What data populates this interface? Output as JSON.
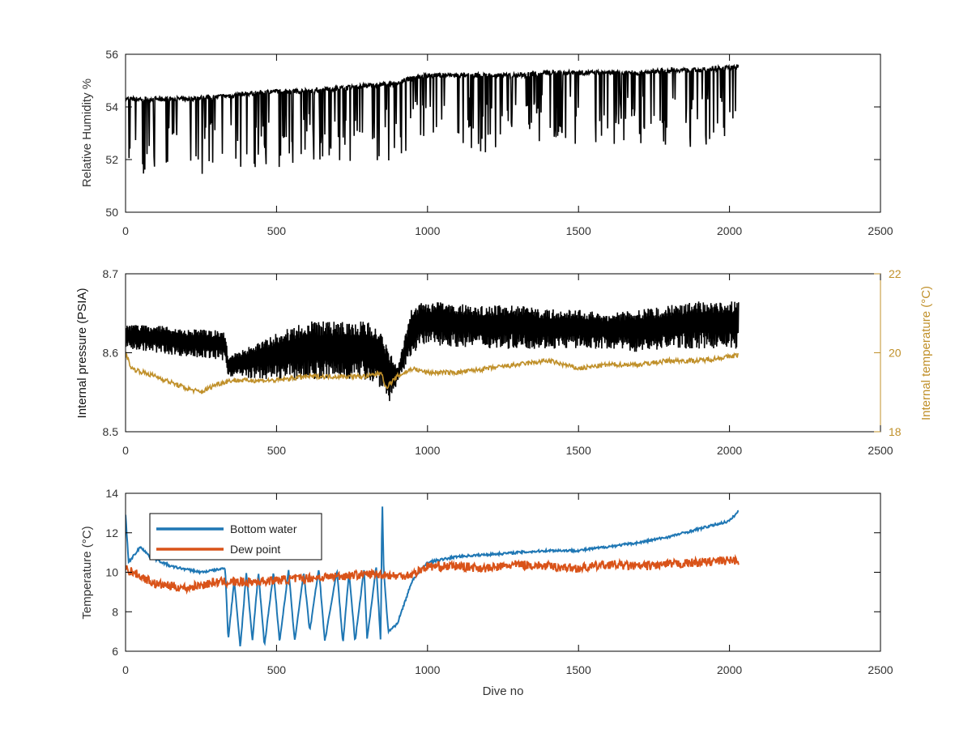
{
  "figure": {
    "xlabel": "Dive no"
  },
  "chart_data": [
    {
      "type": "line",
      "xlim": [
        0,
        2500
      ],
      "xticks": [
        0,
        500,
        1000,
        1500,
        2000,
        2500
      ],
      "ylabel": "Relative Humidity %",
      "ylim": [
        50,
        56
      ],
      "yticks": [
        50,
        52,
        54,
        56
      ],
      "grid": false,
      "series": [
        {
          "color": "#000000",
          "baseline": [
            [
              0,
              54.3
            ],
            [
              100,
              54.3
            ],
            [
              200,
              54.3
            ],
            [
              320,
              54.4
            ],
            [
              400,
              54.5
            ],
            [
              500,
              54.6
            ],
            [
              600,
              54.6
            ],
            [
              700,
              54.7
            ],
            [
              800,
              54.8
            ],
            [
              900,
              54.9
            ],
            [
              950,
              55.1
            ],
            [
              1000,
              55.2
            ],
            [
              1200,
              55.2
            ],
            [
              1300,
              55.2
            ],
            [
              1400,
              55.3
            ],
            [
              1500,
              55.3
            ],
            [
              1700,
              55.3
            ],
            [
              1800,
              55.4
            ],
            [
              1900,
              55.4
            ],
            [
              2000,
              55.5
            ],
            [
              2030,
              55.5
            ]
          ],
          "spike_floor": [
            [
              0,
              51.4
            ],
            [
              100,
              51.5
            ],
            [
              200,
              51.3
            ],
            [
              300,
              51.4
            ],
            [
              380,
              51.1
            ],
            [
              400,
              51.2
            ],
            [
              500,
              51.6
            ],
            [
              600,
              51.8
            ],
            [
              700,
              51.9
            ],
            [
              800,
              51.9
            ],
            [
              900,
              51.9
            ],
            [
              950,
              52.6
            ],
            [
              1000,
              52.7
            ],
            [
              1100,
              52.7
            ],
            [
              1200,
              52.1
            ],
            [
              1300,
              52.2
            ],
            [
              1400,
              52.5
            ],
            [
              1500,
              52.6
            ],
            [
              1600,
              52.6
            ],
            [
              1700,
              52.5
            ],
            [
              1800,
              52.3
            ],
            [
              1900,
              52.5
            ],
            [
              2000,
              52.6
            ],
            [
              2030,
              52.6
            ]
          ],
          "x_range": [
            0,
            2030
          ]
        }
      ]
    },
    {
      "type": "line",
      "xlim": [
        0,
        2500
      ],
      "xticks": [
        0,
        500,
        1000,
        1500,
        2000,
        2500
      ],
      "ylabel": "Internal pressure (PSIA)",
      "ylim": [
        8.5,
        8.7
      ],
      "yticks": [
        8.5,
        8.6,
        8.7
      ],
      "ytick_labels": [
        "8.5",
        "8.6",
        "8.7"
      ],
      "y2label": "Internal temperature (°C)",
      "y2lim": [
        18,
        22
      ],
      "y2ticks": [
        18,
        20,
        22
      ],
      "y2color": "#C0902A",
      "grid": false,
      "series": [
        {
          "axis": "left",
          "color": "#000000",
          "upper": [
            [
              0,
              8.635
            ],
            [
              100,
              8.635
            ],
            [
              200,
              8.63
            ],
            [
              330,
              8.628
            ],
            [
              340,
              8.595
            ],
            [
              500,
              8.625
            ],
            [
              600,
              8.64
            ],
            [
              700,
              8.64
            ],
            [
              800,
              8.64
            ],
            [
              850,
              8.625
            ],
            [
              900,
              8.58
            ],
            [
              950,
              8.66
            ],
            [
              1000,
              8.665
            ],
            [
              1200,
              8.66
            ],
            [
              1300,
              8.66
            ],
            [
              1400,
              8.655
            ],
            [
              1500,
              8.655
            ],
            [
              1600,
              8.65
            ],
            [
              1700,
              8.655
            ],
            [
              1800,
              8.66
            ],
            [
              1900,
              8.665
            ],
            [
              2030,
              8.665
            ]
          ],
          "lower": [
            [
              0,
              8.605
            ],
            [
              100,
              8.6
            ],
            [
              200,
              8.595
            ],
            [
              330,
              8.59
            ],
            [
              340,
              8.57
            ],
            [
              500,
              8.565
            ],
            [
              600,
              8.565
            ],
            [
              700,
              8.565
            ],
            [
              800,
              8.565
            ],
            [
              850,
              8.555
            ],
            [
              870,
              8.535
            ],
            [
              900,
              8.56
            ],
            [
              950,
              8.6
            ],
            [
              1000,
              8.61
            ],
            [
              1200,
              8.605
            ],
            [
              1300,
              8.605
            ],
            [
              1400,
              8.605
            ],
            [
              1500,
              8.605
            ],
            [
              1600,
              8.605
            ],
            [
              1700,
              8.6
            ],
            [
              1800,
              8.605
            ],
            [
              1900,
              8.605
            ],
            [
              2030,
              8.605
            ]
          ],
          "x_range": [
            0,
            2030
          ]
        },
        {
          "axis": "right",
          "color": "#C0902A",
          "values": [
            [
              0,
              20.0
            ],
            [
              20,
              19.6
            ],
            [
              100,
              19.4
            ],
            [
              200,
              19.1
            ],
            [
              250,
              19.0
            ],
            [
              300,
              19.2
            ],
            [
              350,
              19.3
            ],
            [
              400,
              19.3
            ],
            [
              500,
              19.3
            ],
            [
              600,
              19.4
            ],
            [
              700,
              19.4
            ],
            [
              800,
              19.4
            ],
            [
              850,
              19.5
            ],
            [
              860,
              19.1
            ],
            [
              900,
              19.4
            ],
            [
              950,
              19.6
            ],
            [
              1000,
              19.5
            ],
            [
              1100,
              19.5
            ],
            [
              1200,
              19.6
            ],
            [
              1300,
              19.7
            ],
            [
              1400,
              19.8
            ],
            [
              1500,
              19.6
            ],
            [
              1600,
              19.7
            ],
            [
              1700,
              19.7
            ],
            [
              1800,
              19.8
            ],
            [
              1900,
              19.8
            ],
            [
              2000,
              19.9
            ],
            [
              2030,
              19.95
            ]
          ],
          "x_range": [
            0,
            2030
          ]
        }
      ]
    },
    {
      "type": "line",
      "xlim": [
        0,
        2500
      ],
      "xticks": [
        0,
        500,
        1000,
        1500,
        2000,
        2500
      ],
      "xlabel": "Dive no",
      "ylabel": "Temperature (°C)",
      "ylim": [
        6,
        14
      ],
      "yticks": [
        6,
        8,
        10,
        12,
        14
      ],
      "grid": false,
      "legend": "top-left",
      "series": [
        {
          "name": "Bottom water",
          "color": "#1F77B4",
          "values": [
            [
              0,
              12.9
            ],
            [
              10,
              10.5
            ],
            [
              50,
              11.3
            ],
            [
              80,
              10.8
            ],
            [
              150,
              10.3
            ],
            [
              250,
              10.0
            ],
            [
              330,
              10.2
            ],
            [
              340,
              6.6
            ],
            [
              360,
              9.6
            ],
            [
              380,
              6.2
            ],
            [
              400,
              10.0
            ],
            [
              420,
              6.5
            ],
            [
              440,
              10.0
            ],
            [
              460,
              6.3
            ],
            [
              490,
              10.0
            ],
            [
              510,
              6.5
            ],
            [
              540,
              10.1
            ],
            [
              560,
              6.5
            ],
            [
              590,
              10.0
            ],
            [
              610,
              7.0
            ],
            [
              640,
              10.2
            ],
            [
              660,
              6.5
            ],
            [
              700,
              10.1
            ],
            [
              720,
              6.4
            ],
            [
              740,
              10.0
            ],
            [
              760,
              6.5
            ],
            [
              790,
              10.2
            ],
            [
              800,
              6.6
            ],
            [
              830,
              10.3
            ],
            [
              845,
              6.5
            ],
            [
              850,
              13.8
            ],
            [
              855,
              10.1
            ],
            [
              870,
              7.0
            ],
            [
              900,
              7.4
            ],
            [
              950,
              9.6
            ],
            [
              1000,
              10.5
            ],
            [
              1100,
              10.8
            ],
            [
              1200,
              10.9
            ],
            [
              1300,
              11.0
            ],
            [
              1400,
              11.1
            ],
            [
              1500,
              11.1
            ],
            [
              1600,
              11.3
            ],
            [
              1700,
              11.5
            ],
            [
              1800,
              11.8
            ],
            [
              1900,
              12.2
            ],
            [
              2000,
              12.6
            ],
            [
              2030,
              13.1
            ]
          ],
          "x_range": [
            0,
            2030
          ]
        },
        {
          "name": "Dew point",
          "color": "#D95319",
          "values": [
            [
              0,
              10.2
            ],
            [
              100,
              9.4
            ],
            [
              200,
              9.2
            ],
            [
              300,
              9.5
            ],
            [
              400,
              9.5
            ],
            [
              500,
              9.6
            ],
            [
              600,
              9.7
            ],
            [
              700,
              9.8
            ],
            [
              800,
              9.9
            ],
            [
              850,
              9.9
            ],
            [
              900,
              9.8
            ],
            [
              950,
              9.9
            ],
            [
              1000,
              10.3
            ],
            [
              1100,
              10.3
            ],
            [
              1200,
              10.2
            ],
            [
              1300,
              10.4
            ],
            [
              1400,
              10.3
            ],
            [
              1500,
              10.2
            ],
            [
              1600,
              10.4
            ],
            [
              1700,
              10.3
            ],
            [
              1800,
              10.4
            ],
            [
              1900,
              10.5
            ],
            [
              2000,
              10.6
            ],
            [
              2030,
              10.6
            ]
          ],
          "x_range": [
            0,
            2030
          ]
        }
      ]
    }
  ]
}
